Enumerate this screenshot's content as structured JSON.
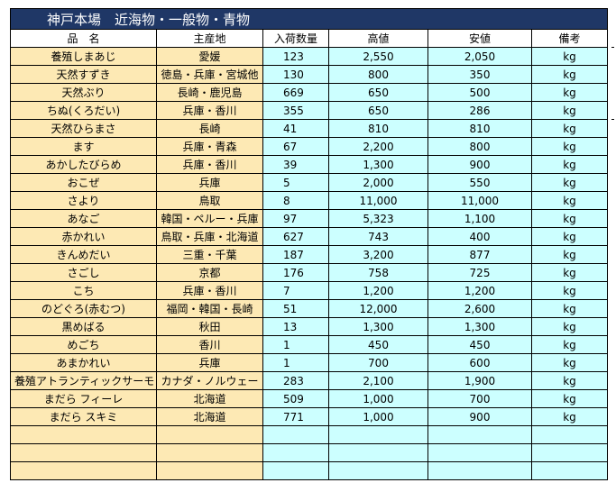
{
  "title": "神戸本場　近海物・一般物・青物",
  "headers": {
    "name": "品　名",
    "origin": "主産地",
    "qty": "入荷数量",
    "high": "高値",
    "low": "安値",
    "note": "備考"
  },
  "rows": [
    {
      "name": "養殖しまあじ",
      "origin": "愛媛",
      "qty": "123",
      "high": "2,550",
      "low": "2,050",
      "unit": "kg"
    },
    {
      "name": "天然すずき",
      "origin": "徳島・兵庫・宮城他",
      "qty": "130",
      "high": "800",
      "low": "350",
      "unit": "kg"
    },
    {
      "name": "天然ぶり",
      "origin": "長崎・鹿児島",
      "qty": "669",
      "high": "650",
      "low": "500",
      "unit": "kg"
    },
    {
      "name": "ちぬ(くろだい)",
      "origin": "兵庫・香川",
      "qty": "355",
      "high": "650",
      "low": "286",
      "unit": "kg"
    },
    {
      "name": "天然ひらまさ",
      "origin": "長崎",
      "qty": "41",
      "high": "810",
      "low": "810",
      "unit": "kg"
    },
    {
      "name": "ます",
      "origin": "兵庫・青森",
      "qty": "67",
      "high": "2,200",
      "low": "800",
      "unit": "kg"
    },
    {
      "name": "あかしたびらめ",
      "origin": "兵庫・香川",
      "qty": "39",
      "high": "1,300",
      "low": "900",
      "unit": "kg"
    },
    {
      "name": "おこぜ",
      "origin": "兵庫",
      "qty": "5",
      "high": "2,000",
      "low": "550",
      "unit": "kg"
    },
    {
      "name": "さより",
      "origin": "鳥取",
      "qty": "8",
      "high": "11,000",
      "low": "11,000",
      "unit": "kg"
    },
    {
      "name": "あなご",
      "origin": "韓国・ペルー・兵庫",
      "qty": "97",
      "high": "5,323",
      "low": "1,100",
      "unit": "kg"
    },
    {
      "name": "赤かれい",
      "origin": "鳥取・兵庫・北海道",
      "qty": "627",
      "high": "743",
      "low": "400",
      "unit": "kg"
    },
    {
      "name": "きんめだい",
      "origin": "三重・千葉",
      "qty": "187",
      "high": "3,200",
      "low": "877",
      "unit": "kg"
    },
    {
      "name": "さごし",
      "origin": "京都",
      "qty": "176",
      "high": "758",
      "low": "725",
      "unit": "kg"
    },
    {
      "name": "こち",
      "origin": "兵庫・香川",
      "qty": "7",
      "high": "1,200",
      "low": "1,200",
      "unit": "kg"
    },
    {
      "name": "のどぐろ(赤むつ)",
      "origin": "福岡・韓国・長崎",
      "qty": "51",
      "high": "12,000",
      "low": "2,600",
      "unit": "kg"
    },
    {
      "name": "黒めばる",
      "origin": "秋田",
      "qty": "13",
      "high": "1,300",
      "low": "1,300",
      "unit": "kg"
    },
    {
      "name": "めごち",
      "origin": "香川",
      "qty": "1",
      "high": "450",
      "low": "450",
      "unit": "kg"
    },
    {
      "name": "あまかれい",
      "origin": "兵庫",
      "qty": "1",
      "high": "700",
      "low": "600",
      "unit": "kg"
    },
    {
      "name": "養殖アトランティックサーモン",
      "origin": "カナダ・ノルウェー",
      "qty": "283",
      "high": "2,100",
      "low": "1,900",
      "unit": "kg"
    },
    {
      "name": "まだら フィーレ",
      "origin": "北海道",
      "qty": "509",
      "high": "1,000",
      "low": "700",
      "unit": "kg"
    },
    {
      "name": "まだら スキミ",
      "origin": "北海道",
      "qty": "771",
      "high": "1,000",
      "low": "900",
      "unit": "kg"
    },
    {
      "name": "",
      "origin": "",
      "qty": "",
      "high": "",
      "low": "",
      "unit": ""
    },
    {
      "name": "",
      "origin": "",
      "qty": "",
      "high": "",
      "low": "",
      "unit": ""
    },
    {
      "name": "",
      "origin": "",
      "qty": "",
      "high": "",
      "low": "",
      "unit": ""
    }
  ],
  "colors": {
    "title_bg": "#1f3766",
    "name_bg": "#fde9b4",
    "value_bg": "#ccffff"
  }
}
